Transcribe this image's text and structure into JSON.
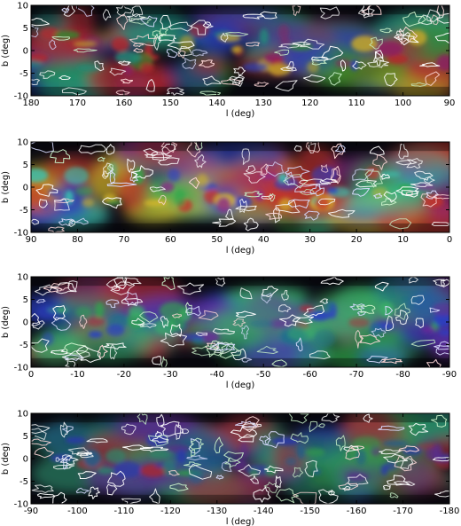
{
  "figure": {
    "panel_count": 4
  },
  "chart_data": [
    {
      "type": "heatmap",
      "xlabel": "l (deg)",
      "ylabel": "b (deg)",
      "xlim": [
        180,
        90
      ],
      "ylim": [
        -10,
        10
      ],
      "xticks": [
        180,
        170,
        160,
        150,
        140,
        130,
        120,
        110,
        100,
        90
      ],
      "yticks": [
        -10,
        -5,
        0,
        5,
        10
      ]
    },
    {
      "type": "heatmap",
      "xlabel": "l (deg)",
      "ylabel": "b (deg)",
      "xlim": [
        90,
        0
      ],
      "ylim": [
        -10,
        10
      ],
      "xticks": [
        90,
        80,
        70,
        60,
        50,
        40,
        30,
        20,
        10,
        0
      ],
      "yticks": [
        -10,
        -5,
        0,
        5,
        10
      ]
    },
    {
      "type": "heatmap",
      "xlabel": "l (deg)",
      "ylabel": "b (deg)",
      "xlim": [
        0,
        -90
      ],
      "ylim": [
        -10,
        10
      ],
      "xticks": [
        0,
        -10,
        -20,
        -30,
        -40,
        -50,
        -60,
        -70,
        -80,
        -90
      ],
      "yticks": [
        -10,
        -5,
        0,
        5,
        10
      ]
    },
    {
      "type": "heatmap",
      "xlabel": "l (deg)",
      "ylabel": "b (deg)",
      "xlim": [
        -90,
        -180
      ],
      "ylim": [
        -10,
        10
      ],
      "xticks": [
        -90,
        -100,
        -110,
        -120,
        -130,
        -140,
        -150,
        -160,
        -170,
        -180
      ],
      "yticks": [
        -10,
        -5,
        0,
        5,
        10
      ]
    }
  ]
}
